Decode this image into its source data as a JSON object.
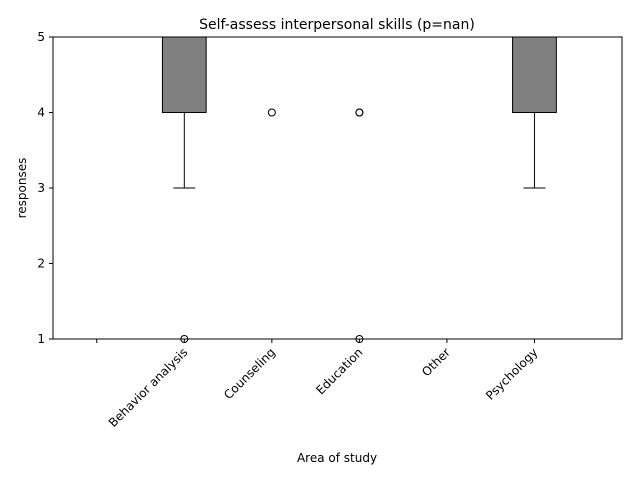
{
  "chart_data": {
    "type": "box",
    "title": "Self-assess interpersonal skills (p=nan)",
    "xlabel": "Area of study",
    "ylabel": "responses",
    "ylim": [
      1,
      5
    ],
    "yticks": [
      1,
      2,
      3,
      4,
      5
    ],
    "categories": [
      "",
      "Behavior analysis",
      "Counseling",
      "Education",
      "Other",
      "Psychology"
    ],
    "boxes": [
      null,
      {
        "whisker_low": 3,
        "q1": 4,
        "median": 5,
        "q3": 5,
        "whisker_high": 5,
        "outliers": [
          1
        ]
      },
      {
        "whisker_low": 5,
        "q1": 5,
        "median": 5,
        "q3": 5,
        "whisker_high": 5,
        "outliers": [
          4
        ]
      },
      {
        "whisker_low": 5,
        "q1": 5,
        "median": 5,
        "q3": 5,
        "whisker_high": 5,
        "outliers": [
          4,
          4,
          1
        ]
      },
      {
        "whisker_low": 5,
        "q1": 5,
        "median": 5,
        "q3": 5,
        "whisker_high": 5,
        "outliers": []
      },
      {
        "whisker_low": 3,
        "q1": 4,
        "median": 5,
        "q3": 5,
        "whisker_high": 5,
        "outliers": []
      }
    ],
    "box_color": "#808080",
    "grid": false,
    "legend": "none"
  }
}
